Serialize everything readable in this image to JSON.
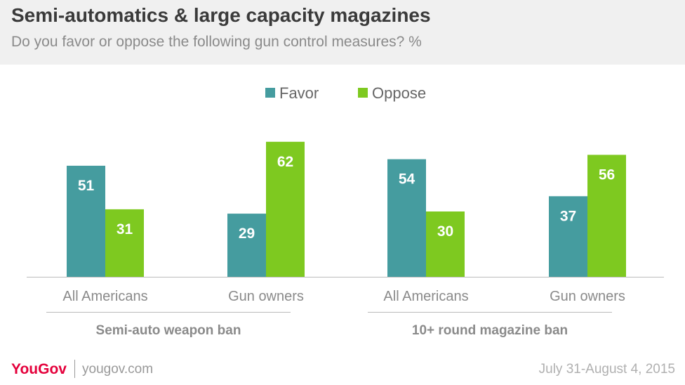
{
  "header": {
    "title": "Semi-automatics & large capacity magazines",
    "subtitle": "Do you favor or oppose the following gun control measures? %"
  },
  "footer": {
    "brand": "YouGov",
    "url": "yougov.com",
    "date": "July 31-August 4, 2015"
  },
  "colors": {
    "favor": "#459c9f",
    "oppose": "#7ec920",
    "axis": "#bbbbbb",
    "label": "#8a8a8a",
    "group": "#8a8a8a"
  },
  "chart_data": {
    "type": "bar",
    "ylim": [
      0,
      70
    ],
    "legend_position": "top-center",
    "grid": false,
    "series": [
      {
        "name": "Favor",
        "values": [
          51,
          29,
          54,
          37
        ]
      },
      {
        "name": "Oppose",
        "values": [
          31,
          62,
          30,
          56
        ]
      }
    ],
    "categories": [
      "All Americans",
      "Gun owners",
      "All Americans",
      "Gun owners"
    ],
    "groups": [
      {
        "label": "Semi-auto weapon ban",
        "categories": [
          0,
          1
        ]
      },
      {
        "label": "10+ round magazine ban",
        "categories": [
          2,
          3
        ]
      }
    ]
  }
}
